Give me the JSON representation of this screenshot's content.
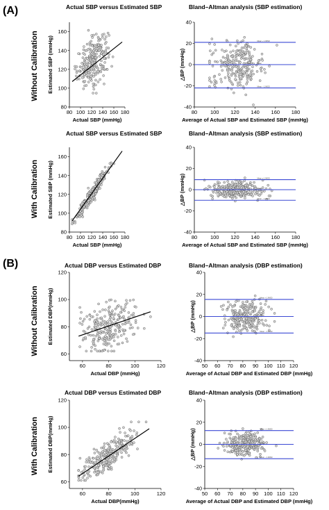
{
  "figure": {
    "sections": [
      {
        "label": "(A)",
        "row_labels": [
          "Without Calibration",
          "With Calibration"
        ]
      },
      {
        "label": "(B)",
        "row_labels": [
          "Without Calibration",
          "With Calibration"
        ]
      }
    ]
  },
  "chart_data": [
    {
      "type": "scatter",
      "section": "A",
      "row": 1,
      "title": "Actual SBP versus Estimated SBP",
      "xlabel": "Actual SBP (mmHg)",
      "ylabel": "Estimated SBP (mmHg)",
      "xlim": [
        80,
        180
      ],
      "ylim": [
        80,
        170
      ],
      "xticks": [
        80,
        100,
        120,
        140,
        160,
        180
      ],
      "yticks": [
        80,
        100,
        120,
        140,
        160
      ],
      "grid": false,
      "marker": "open-circle",
      "cloud": {
        "x_center": 122,
        "x_spread": 14,
        "x_range": [
          90,
          173
        ],
        "slope": 0.4,
        "intercept": 80,
        "noise": 12,
        "y_range": [
          85,
          165
        ],
        "count": 260
      },
      "fit_line": {
        "x": [
          85,
          175
        ],
        "y": [
          107,
          149
        ]
      }
    },
    {
      "type": "scatter",
      "section": "A",
      "row": 1,
      "variant": "bland-altman",
      "title": "Bland–Altman analysis (SBP estimation)",
      "xlabel": "Average of Actual SBP and Estimated SBP (mmHg)",
      "ylabel": "△BP (mmHg)",
      "xlim": [
        80,
        180
      ],
      "ylim": [
        -40,
        40
      ],
      "xticks": [
        80,
        100,
        120,
        140,
        160,
        180
      ],
      "yticks": [
        -40,
        -20,
        0,
        20,
        40
      ],
      "grid": false,
      "marker": "open-circle",
      "cloud": {
        "x_center": 122,
        "x_spread": 13,
        "x_range": [
          95,
          168
        ],
        "noise": 11,
        "y_range": [
          -38,
          36
        ],
        "count": 260
      },
      "limits": {
        "mean": 0,
        "upper": 21,
        "lower": -22
      },
      "limit_annotations": {
        "upper": "Mean + 1.96SD",
        "mean": "Mean",
        "lower": "Mean − 1.96SD"
      }
    },
    {
      "type": "scatter",
      "section": "A",
      "row": 2,
      "title": "Actual SBP versus Estimated SBP",
      "xlabel": "Actual SBP (mmHg)",
      "ylabel": "Estimated SBP (mmHg)",
      "xlim": [
        80,
        180
      ],
      "ylim": [
        80,
        170
      ],
      "xticks": [
        80,
        100,
        120,
        140,
        160,
        180
      ],
      "yticks": [
        80,
        100,
        120,
        140,
        160
      ],
      "grid": false,
      "marker": "open-circle",
      "cloud": {
        "x_center": 122,
        "x_spread": 15,
        "x_range": [
          85,
          175
        ],
        "slope": 0.9,
        "intercept": 12,
        "noise": 3.5,
        "y_range": [
          85,
          168
        ],
        "count": 280
      },
      "fit_line": {
        "x": [
          85,
          175
        ],
        "y": [
          92,
          166
        ]
      }
    },
    {
      "type": "scatter",
      "section": "A",
      "row": 2,
      "variant": "bland-altman",
      "title": "Bland–Altman analysis (SBP estimation)",
      "xlabel": "Average of Actual SBP and Estimated SBP (mmHg)",
      "ylabel": "△BP (mmHg)",
      "xlim": [
        80,
        180
      ],
      "ylim": [
        -40,
        40
      ],
      "xticks": [
        80,
        100,
        120,
        140,
        160,
        180
      ],
      "yticks": [
        -40,
        -20,
        0,
        20,
        40
      ],
      "grid": false,
      "marker": "open-circle",
      "cloud": {
        "x_center": 122,
        "x_spread": 14,
        "x_range": [
          90,
          172
        ],
        "noise": 4.2,
        "y_range": [
          -14,
          14
        ],
        "count": 280
      },
      "limits": {
        "mean": 0,
        "upper": 9.5,
        "lower": -10
      },
      "limit_annotations": {
        "upper": "Mean + 1.96SD",
        "mean": "Mean",
        "lower": "Mean − 1.96SD"
      }
    },
    {
      "type": "scatter",
      "section": "B",
      "row": 1,
      "title": "Actual DBP versus Estimated DBP",
      "xlabel": "Actual DBP (mmHg)",
      "ylabel": "Estimated DBP(mmHg)",
      "xlim": [
        50,
        120
      ],
      "ylim": [
        55,
        120
      ],
      "xticks": [
        60,
        80,
        100,
        120
      ],
      "yticks": [
        60,
        80,
        100,
        120
      ],
      "grid": false,
      "marker": "open-circle",
      "cloud": {
        "x_center": 80,
        "x_spread": 10,
        "x_range": [
          58,
          112
        ],
        "slope": 0.33,
        "intercept": 54,
        "noise": 9,
        "y_range": [
          62,
          112
        ],
        "count": 260
      },
      "fit_line": {
        "x": [
          57,
          112
        ],
        "y": [
          73,
          91
        ]
      }
    },
    {
      "type": "scatter",
      "section": "B",
      "row": 1,
      "variant": "bland-altman",
      "title": "Bland–Altman analysis (DBP estimation)",
      "xlabel": "Average of Actual DBP and Estimated DBP (mmHg)",
      "ylabel": "△BP (mmHg)",
      "xlim": [
        50,
        120
      ],
      "ylim": [
        -40,
        40
      ],
      "xticks": [
        50,
        60,
        70,
        80,
        90,
        100,
        110,
        120
      ],
      "yticks": [
        -40,
        -20,
        0,
        20,
        40
      ],
      "grid": false,
      "marker": "open-circle",
      "cloud": {
        "x_center": 82,
        "x_spread": 8,
        "x_range": [
          62,
          105
        ],
        "noise": 8,
        "y_range": [
          -35,
          38
        ],
        "count": 260
      },
      "limits": {
        "mean": 0,
        "upper": 15.5,
        "lower": -15
      },
      "limit_annotations": {
        "upper": "Mean + 1.96SD",
        "mean": "Mean",
        "lower": "Mean − 1.96SD"
      }
    },
    {
      "type": "scatter",
      "section": "B",
      "row": 2,
      "title": "Actual DBP versus Estimated DBP",
      "xlabel": "Actual DBP(mmHg)",
      "ylabel": "Estimated DBP(mmHg)",
      "xlim": [
        50,
        120
      ],
      "ylim": [
        55,
        120
      ],
      "xticks": [
        60,
        80,
        100,
        120
      ],
      "yticks": [
        60,
        80,
        100,
        120
      ],
      "grid": false,
      "marker": "open-circle",
      "cloud": {
        "x_center": 80,
        "x_spread": 11,
        "x_range": [
          57,
          111
        ],
        "slope": 0.68,
        "intercept": 25,
        "noise": 5.5,
        "y_range": [
          61,
          104
        ],
        "count": 270
      },
      "fit_line": {
        "x": [
          57,
          111
        ],
        "y": [
          64,
          99
        ]
      }
    },
    {
      "type": "scatter",
      "section": "B",
      "row": 2,
      "variant": "bland-altman",
      "title": "Bland–Altman analysis (DBP estimation)",
      "xlabel": "Average of Actual DBP and Estimated DBP (mmHg)",
      "ylabel": "△BP (mmHg)",
      "xlim": [
        50,
        120
      ],
      "ylim": [
        -40,
        40
      ],
      "xticks": [
        50,
        60,
        70,
        80,
        90,
        100,
        110,
        120
      ],
      "yticks": [
        -40,
        -20,
        0,
        20,
        40
      ],
      "grid": false,
      "marker": "open-circle",
      "cloud": {
        "x_center": 82,
        "x_spread": 8,
        "x_range": [
          58,
          108
        ],
        "noise": 5.5,
        "y_range": [
          -20,
          22
        ],
        "count": 270
      },
      "limits": {
        "mean": 0,
        "upper": 12.5,
        "lower": -13
      },
      "limit_annotations": {
        "upper": "Mean + 1.96SD",
        "mean": "Mean",
        "lower": "Mean − 1.96SD"
      }
    }
  ],
  "colors": {
    "limit_line": "#3a48d4",
    "fit_line": "#000000",
    "marker_stroke": "#555555",
    "marker_fill": "#d8d8d8"
  }
}
